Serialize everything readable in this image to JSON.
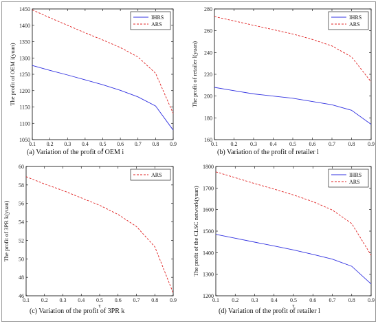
{
  "chart_data": [
    {
      "type": "line",
      "caption": "(a)    Variation of the profit of OEM i",
      "xlabel": "τ",
      "ylabel": "The profit of OEM i(yuan)",
      "xlim": [
        0.1,
        0.9
      ],
      "ylim": [
        1050,
        1450
      ],
      "xticks": [
        0.1,
        0.2,
        0.3,
        0.4,
        0.5,
        0.6,
        0.7,
        0.8,
        0.9
      ],
      "yticks": [
        1050,
        1100,
        1150,
        1200,
        1250,
        1300,
        1350,
        1400,
        1450
      ],
      "legend_position": "top-right",
      "x": [
        0.1,
        0.2,
        0.3,
        0.4,
        0.5,
        0.6,
        0.7,
        0.8,
        0.9
      ],
      "series": [
        {
          "name": "IHRS",
          "color": "#3030e0",
          "dash": "solid",
          "values": [
            1277,
            1262,
            1248,
            1233,
            1218,
            1201,
            1181,
            1153,
            1079
          ]
        },
        {
          "name": "ARS",
          "color": "#e02020",
          "dash": "dashed",
          "values": [
            1447,
            1423,
            1400,
            1377,
            1355,
            1332,
            1303,
            1253,
            1130
          ]
        }
      ]
    },
    {
      "type": "line",
      "caption": "(b)    Variation of the profit of retailer l",
      "xlabel": "τ",
      "ylabel": "The profit of retailer l(yuan)",
      "xlim": [
        0.1,
        0.9
      ],
      "ylim": [
        160,
        280
      ],
      "xticks": [
        0.1,
        0.2,
        0.3,
        0.4,
        0.5,
        0.6,
        0.7,
        0.8,
        0.9
      ],
      "yticks": [
        160,
        180,
        200,
        220,
        240,
        260,
        280
      ],
      "legend_position": "top-right",
      "x": [
        0.1,
        0.2,
        0.3,
        0.4,
        0.5,
        0.6,
        0.7,
        0.8,
        0.9
      ],
      "series": [
        {
          "name": "IHRS",
          "color": "#3030e0",
          "dash": "solid",
          "values": [
            208,
            205,
            202,
            200,
            198,
            195,
            192,
            187,
            174
          ]
        },
        {
          "name": "ARS",
          "color": "#e02020",
          "dash": "dashed",
          "values": [
            273,
            269,
            265,
            261,
            257,
            252,
            246,
            236,
            213
          ]
        }
      ]
    },
    {
      "type": "line",
      "caption": "(c)    Variation of the profit of 3PR k",
      "xlabel": "τ",
      "ylabel": "The profit of 3PR k(yuan)",
      "xlim": [
        0.1,
        0.9
      ],
      "ylim": [
        46,
        60
      ],
      "xticks": [
        0.1,
        0.2,
        0.3,
        0.4,
        0.5,
        0.6,
        0.7,
        0.8,
        0.9
      ],
      "yticks": [
        46,
        48,
        50,
        52,
        54,
        56,
        58,
        60
      ],
      "legend_position": "top-right",
      "x": [
        0.1,
        0.2,
        0.3,
        0.4,
        0.5,
        0.6,
        0.7,
        0.8,
        0.9
      ],
      "series": [
        {
          "name": "ARS",
          "color": "#e02020",
          "dash": "dashed",
          "values": [
            58.9,
            58.1,
            57.4,
            56.6,
            55.8,
            54.8,
            53.5,
            51.3,
            46.3
          ]
        }
      ]
    },
    {
      "type": "line",
      "caption": "(d)    Variation of the profit of retailer l",
      "xlabel": "τ",
      "ylabel": "The profit of the CLSC network(yuan)",
      "xlim": [
        0.1,
        0.9
      ],
      "ylim": [
        1200,
        1800
      ],
      "xticks": [
        0.1,
        0.2,
        0.3,
        0.4,
        0.5,
        0.6,
        0.7,
        0.8,
        0.9
      ],
      "yticks": [
        1200,
        1300,
        1400,
        1500,
        1600,
        1700,
        1800
      ],
      "legend_position": "top-right",
      "x": [
        0.1,
        0.2,
        0.3,
        0.4,
        0.5,
        0.6,
        0.7,
        0.8,
        0.9
      ],
      "series": [
        {
          "name": "IHRS",
          "color": "#3030e0",
          "dash": "solid",
          "values": [
            1485,
            1467,
            1449,
            1431,
            1413,
            1392,
            1370,
            1337,
            1255
          ]
        },
        {
          "name": "ARS",
          "color": "#e02020",
          "dash": "dashed",
          "values": [
            1775,
            1748,
            1721,
            1695,
            1668,
            1637,
            1598,
            1535,
            1388
          ]
        }
      ]
    }
  ]
}
